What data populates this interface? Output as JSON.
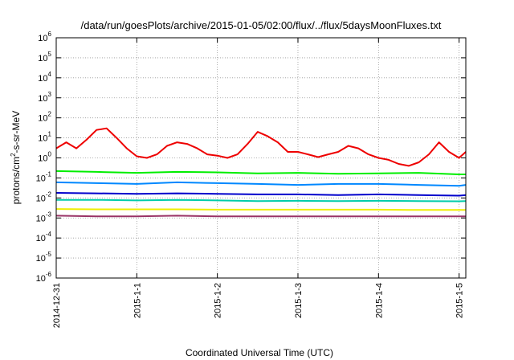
{
  "chart_data": {
    "type": "line",
    "title": "/data/run/goesPlots/archive/2015-01-05/02:00/flux/../flux/5daysMoonFluxes.txt",
    "xlabel": "Coordinated Universal Time (UTC)",
    "ylabel_main": "protons/cm",
    "ylabel_sup": "2",
    "ylabel_rest": "-s-sr-MeV",
    "y_scale": "log",
    "ylim_exp": [
      -6,
      6
    ],
    "y_tick_exponents": [
      -6,
      -5,
      -4,
      -3,
      -2,
      -1,
      0,
      1,
      2,
      3,
      4,
      5,
      6
    ],
    "y_tick_base": "10",
    "xlim": [
      "2014-12-31T00:00",
      "2015-01-05T02:00"
    ],
    "x_ticks": [
      {
        "label": "2014-12-31",
        "x": "2014-12-31T00:00"
      },
      {
        "label": "2015-1-1",
        "x": "2015-01-01T00:00"
      },
      {
        "label": "2015-1-2",
        "x": "2015-01-02T00:00"
      },
      {
        "label": "2015-1-3",
        "x": "2015-01-03T00:00"
      },
      {
        "label": "2015-1-4",
        "x": "2015-01-04T00:00"
      },
      {
        "label": "2015-1-5",
        "x": "2015-01-05T00:00"
      }
    ],
    "grid": true,
    "series": [
      {
        "color": "#ee0000",
        "x": [
          "2014-12-31T00:00",
          "2014-12-31T03:00",
          "2014-12-31T06:00",
          "2014-12-31T09:00",
          "2014-12-31T12:00",
          "2014-12-31T15:00",
          "2014-12-31T18:00",
          "2014-12-31T21:00",
          "2015-01-01T00:00",
          "2015-01-01T03:00",
          "2015-01-01T06:00",
          "2015-01-01T09:00",
          "2015-01-01T12:00",
          "2015-01-01T15:00",
          "2015-01-01T18:00",
          "2015-01-01T21:00",
          "2015-01-02T00:00",
          "2015-01-02T03:00",
          "2015-01-02T06:00",
          "2015-01-02T09:00",
          "2015-01-02T12:00",
          "2015-01-02T15:00",
          "2015-01-02T18:00",
          "2015-01-02T21:00",
          "2015-01-03T00:00",
          "2015-01-03T03:00",
          "2015-01-03T06:00",
          "2015-01-03T09:00",
          "2015-01-03T12:00",
          "2015-01-03T15:00",
          "2015-01-03T18:00",
          "2015-01-03T21:00",
          "2015-01-04T00:00",
          "2015-01-04T03:00",
          "2015-01-04T06:00",
          "2015-01-04T09:00",
          "2015-01-04T12:00",
          "2015-01-04T15:00",
          "2015-01-04T18:00",
          "2015-01-04T21:00",
          "2015-01-05T00:00",
          "2015-01-05T02:00"
        ],
        "y": [
          3,
          6,
          3,
          8,
          25,
          30,
          10,
          3,
          1.2,
          1,
          1.5,
          4,
          6,
          5,
          3,
          1.5,
          1.3,
          1,
          1.5,
          5,
          20,
          12,
          6,
          2,
          2,
          1.5,
          1.1,
          1.5,
          2,
          4,
          3,
          1.5,
          1,
          0.8,
          0.5,
          0.4,
          0.6,
          1.5,
          6,
          2,
          1,
          2
        ]
      },
      {
        "color": "#00ee00",
        "x": [
          "2014-12-31T00:00",
          "2014-12-31T12:00",
          "2015-01-01T00:00",
          "2015-01-01T12:00",
          "2015-01-02T00:00",
          "2015-01-02T12:00",
          "2015-01-03T00:00",
          "2015-01-03T12:00",
          "2015-01-04T00:00",
          "2015-01-04T12:00",
          "2015-01-05T00:00",
          "2015-01-05T02:00"
        ],
        "y": [
          0.22,
          0.2,
          0.18,
          0.2,
          0.19,
          0.17,
          0.18,
          0.16,
          0.17,
          0.18,
          0.15,
          0.15
        ]
      },
      {
        "color": "#0088ff",
        "x": [
          "2014-12-31T00:00",
          "2014-12-31T12:00",
          "2015-01-01T00:00",
          "2015-01-01T12:00",
          "2015-01-02T00:00",
          "2015-01-02T12:00",
          "2015-01-03T00:00",
          "2015-01-03T12:00",
          "2015-01-04T00:00",
          "2015-01-04T12:00",
          "2015-01-05T00:00",
          "2015-01-05T02:00"
        ],
        "y": [
          0.06,
          0.055,
          0.05,
          0.06,
          0.055,
          0.05,
          0.045,
          0.05,
          0.05,
          0.045,
          0.04,
          0.045
        ]
      },
      {
        "color": "#0000cc",
        "x": [
          "2014-12-31T00:00",
          "2014-12-31T12:00",
          "2015-01-01T00:00",
          "2015-01-01T12:00",
          "2015-01-02T00:00",
          "2015-01-02T12:00",
          "2015-01-03T00:00",
          "2015-01-03T12:00",
          "2015-01-04T00:00",
          "2015-01-04T12:00",
          "2015-01-05T00:00",
          "2015-01-05T02:00"
        ],
        "y": [
          0.018,
          0.017,
          0.016,
          0.017,
          0.016,
          0.015,
          0.015,
          0.014,
          0.015,
          0.014,
          0.013,
          0.014
        ]
      },
      {
        "color": "#00ccaa",
        "x": [
          "2014-12-31T00:00",
          "2014-12-31T12:00",
          "2015-01-01T00:00",
          "2015-01-01T12:00",
          "2015-01-02T00:00",
          "2015-01-02T12:00",
          "2015-01-03T00:00",
          "2015-01-03T12:00",
          "2015-01-04T00:00",
          "2015-01-04T12:00",
          "2015-01-05T00:00",
          "2015-01-05T02:00"
        ],
        "y": [
          0.008,
          0.008,
          0.0075,
          0.008,
          0.0075,
          0.007,
          0.0072,
          0.007,
          0.0072,
          0.007,
          0.0068,
          0.007
        ]
      },
      {
        "color": "#eeee00",
        "x": [
          "2014-12-31T00:00",
          "2014-12-31T12:00",
          "2015-01-01T00:00",
          "2015-01-01T12:00",
          "2015-01-02T00:00",
          "2015-01-02T12:00",
          "2015-01-03T00:00",
          "2015-01-03T12:00",
          "2015-01-04T00:00",
          "2015-01-04T12:00",
          "2015-01-05T00:00",
          "2015-01-05T02:00"
        ],
        "y": [
          0.0028,
          0.0027,
          0.0027,
          0.0027,
          0.0026,
          0.0026,
          0.0026,
          0.0026,
          0.0026,
          0.0025,
          0.0025,
          0.0025
        ]
      },
      {
        "color": "#993366",
        "x": [
          "2014-12-31T00:00",
          "2014-12-31T12:00",
          "2015-01-01T00:00",
          "2015-01-01T12:00",
          "2015-01-02T00:00",
          "2015-01-02T12:00",
          "2015-01-03T00:00",
          "2015-01-03T12:00",
          "2015-01-04T00:00",
          "2015-01-04T12:00",
          "2015-01-05T00:00",
          "2015-01-05T02:00"
        ],
        "y": [
          0.0013,
          0.0012,
          0.0012,
          0.0013,
          0.0012,
          0.0012,
          0.0012,
          0.0012,
          0.0012,
          0.0012,
          0.0012,
          0.0012
        ]
      }
    ]
  }
}
